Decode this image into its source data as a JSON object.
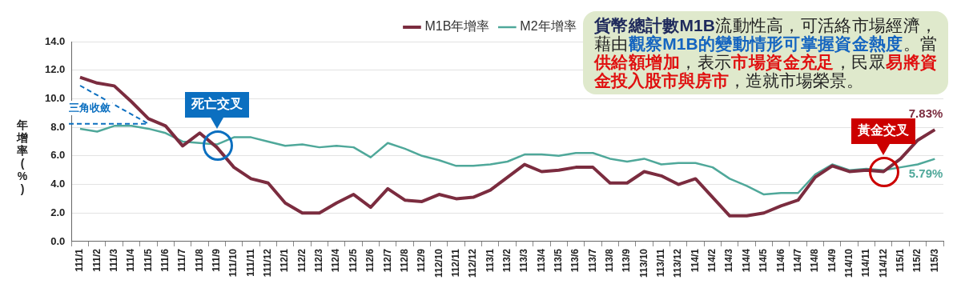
{
  "chart_data": {
    "type": "line",
    "ylabel": "年增率(%)",
    "categories": [
      "111/1",
      "111/2",
      "111/3",
      "111/4",
      "111/5",
      "111/6",
      "111/7",
      "111/8",
      "111/9",
      "111/10",
      "111/11",
      "111/12",
      "112/1",
      "112/2",
      "112/3",
      "112/4",
      "112/5",
      "112/6",
      "112/7",
      "112/8",
      "112/9",
      "112/10",
      "112/11",
      "112/12",
      "113/1",
      "113/2",
      "113/3",
      "113/4",
      "113/5",
      "113/6",
      "113/7",
      "113/8",
      "113/9",
      "113/10",
      "113/11",
      "113/12",
      "114/1",
      "114/2",
      "114/3",
      "114/4",
      "114/5",
      "114/6",
      "114/7",
      "114/8",
      "114/9",
      "114/10",
      "114/11",
      "114/12",
      "115/1",
      "115/2",
      "115/3"
    ],
    "series": [
      {
        "name": "M1B年增率",
        "color": "#7b2c3f",
        "values": [
          11.5,
          11.1,
          10.9,
          9.8,
          8.6,
          8.1,
          6.7,
          7.6,
          6.6,
          5.2,
          4.4,
          4.1,
          2.7,
          2.0,
          2.0,
          2.7,
          3.3,
          2.4,
          3.7,
          2.9,
          2.8,
          3.3,
          3.0,
          3.1,
          3.6,
          4.5,
          5.4,
          4.9,
          5.0,
          5.2,
          5.2,
          4.1,
          4.1,
          4.9,
          4.6,
          4.0,
          4.4,
          3.1,
          1.8,
          1.8,
          2.0,
          2.5,
          2.9,
          4.5,
          5.3,
          4.9,
          5.0,
          4.9,
          5.8,
          7.1,
          7.83
        ],
        "value_labels": [
          null,
          null,
          null,
          null,
          null,
          null,
          null,
          null,
          null,
          null,
          null,
          null,
          null,
          null,
          null,
          null,
          null,
          null,
          null,
          null,
          null,
          null,
          null,
          null,
          null,
          null,
          null,
          null,
          null,
          null,
          null,
          null,
          null,
          null,
          null,
          null,
          null,
          null,
          null,
          null,
          null,
          null,
          null,
          null,
          null,
          null,
          null,
          null,
          null,
          null,
          "7.83%"
        ]
      },
      {
        "name": "M2年增率",
        "color": "#4fa89a",
        "values": [
          7.9,
          7.7,
          8.1,
          8.1,
          7.9,
          7.6,
          7.0,
          6.9,
          6.8,
          7.3,
          7.3,
          7.0,
          6.7,
          6.8,
          6.6,
          6.7,
          6.6,
          5.9,
          6.9,
          6.5,
          6.0,
          5.7,
          5.3,
          5.3,
          5.4,
          5.6,
          6.1,
          6.1,
          6.0,
          6.2,
          6.2,
          5.8,
          5.6,
          5.8,
          5.4,
          5.5,
          5.5,
          5.2,
          4.4,
          3.9,
          3.3,
          3.4,
          3.4,
          4.7,
          5.4,
          5.0,
          5.1,
          5.0,
          5.2,
          5.4,
          5.79
        ],
        "value_labels": [
          null,
          null,
          null,
          null,
          null,
          null,
          null,
          null,
          null,
          null,
          null,
          null,
          null,
          null,
          null,
          null,
          null,
          null,
          null,
          null,
          null,
          null,
          null,
          null,
          null,
          null,
          null,
          null,
          null,
          null,
          null,
          null,
          null,
          null,
          null,
          null,
          null,
          null,
          null,
          null,
          null,
          null,
          null,
          null,
          null,
          null,
          null,
          null,
          null,
          null,
          "5.79%"
        ]
      }
    ],
    "ylim": [
      0,
      14
    ],
    "yticks": [
      {
        "value": 0,
        "label": "0.0"
      },
      {
        "value": 2,
        "label": "2.0"
      },
      {
        "value": 4,
        "label": "4.0"
      },
      {
        "value": 6,
        "label": "6.0"
      },
      {
        "value": 8,
        "label": "8.0"
      },
      {
        "value": 10,
        "label": "10.0"
      },
      {
        "value": 12,
        "label": "12.0"
      },
      {
        "value": 14,
        "label": "14.0"
      }
    ],
    "grid": "y",
    "legend": "top",
    "marker": "none",
    "line_style": "solid",
    "annotations": [
      "貨幣總計數M1B",
      "流動性高，可活絡市場經濟，藉由",
      "觀察M1B的變動情形可掌握資金熱度",
      "。當",
      "供給額增加",
      "，表示",
      "市場資金充足",
      "，民眾",
      "易將資金投入股市與房市",
      "，造就市場榮景。",
      {
        "text": "三角收斂",
        "x": "111/5",
        "y": 8.6
      },
      {
        "text": "死亡交叉",
        "x": "111/9",
        "y": 6.8
      },
      {
        "text": "黃金交叉",
        "x": "114/12",
        "y": 4.95
      }
    ]
  }
}
